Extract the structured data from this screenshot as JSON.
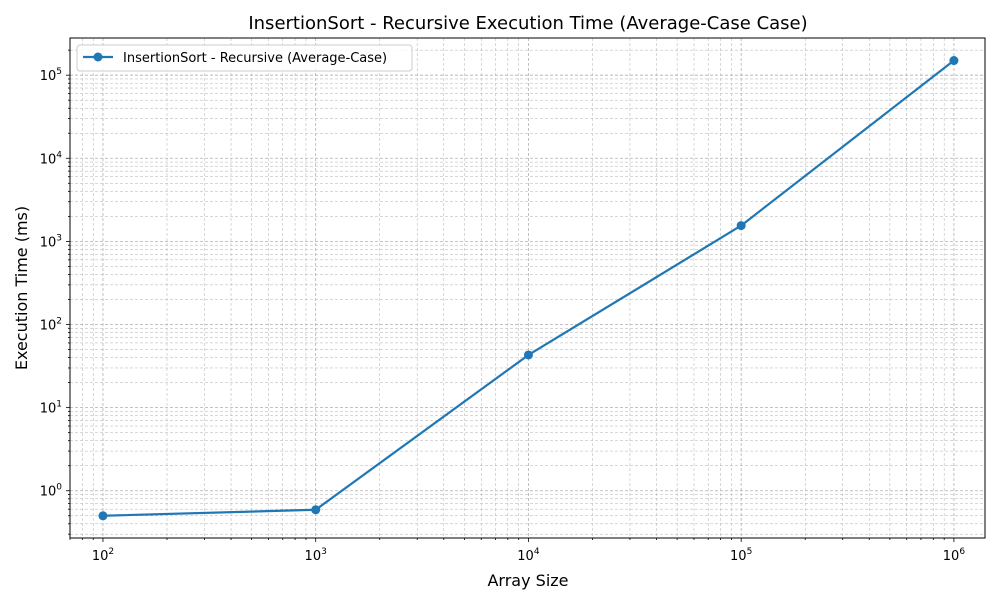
{
  "chart_data": {
    "type": "line",
    "title": "InsertionSort - Recursive Execution Time (Average-Case Case)",
    "xlabel": "Array Size",
    "ylabel": "Execution Time (ms)",
    "xscale": "log",
    "yscale": "log",
    "xlim": [
      70,
      1400000
    ],
    "ylim": [
      0.27,
      280000
    ],
    "x_ticks": [
      {
        "value": 100,
        "base": "10",
        "exp": "2"
      },
      {
        "value": 1000,
        "base": "10",
        "exp": "3"
      },
      {
        "value": 10000,
        "base": "10",
        "exp": "4"
      },
      {
        "value": 100000,
        "base": "10",
        "exp": "5"
      },
      {
        "value": 1000000,
        "base": "10",
        "exp": "6"
      }
    ],
    "y_ticks": [
      {
        "value": 1,
        "base": "10",
        "exp": "0"
      },
      {
        "value": 10,
        "base": "10",
        "exp": "1"
      },
      {
        "value": 100,
        "base": "10",
        "exp": "2"
      },
      {
        "value": 1000,
        "base": "10",
        "exp": "3"
      },
      {
        "value": 10000,
        "base": "10",
        "exp": "4"
      },
      {
        "value": 100000,
        "base": "10",
        "exp": "5"
      }
    ],
    "grid": true,
    "legend_position": "top-left",
    "series": [
      {
        "name": "InsertionSort - Recursive (Average-Case)",
        "color": "#1f77b4",
        "x": [
          100,
          1000,
          10000,
          100000,
          1000000
        ],
        "y": [
          0.5,
          0.59,
          43,
          1550,
          150000
        ]
      }
    ]
  }
}
